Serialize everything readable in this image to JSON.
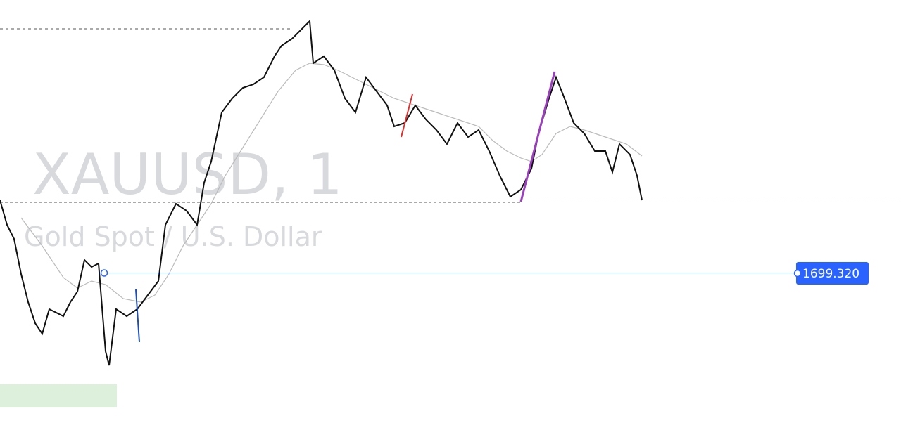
{
  "watermark": {
    "symbol": "XAUUSD, 1",
    "description": "Gold Spot / U.S. Dollar"
  },
  "price_label": "1699.320"
}
